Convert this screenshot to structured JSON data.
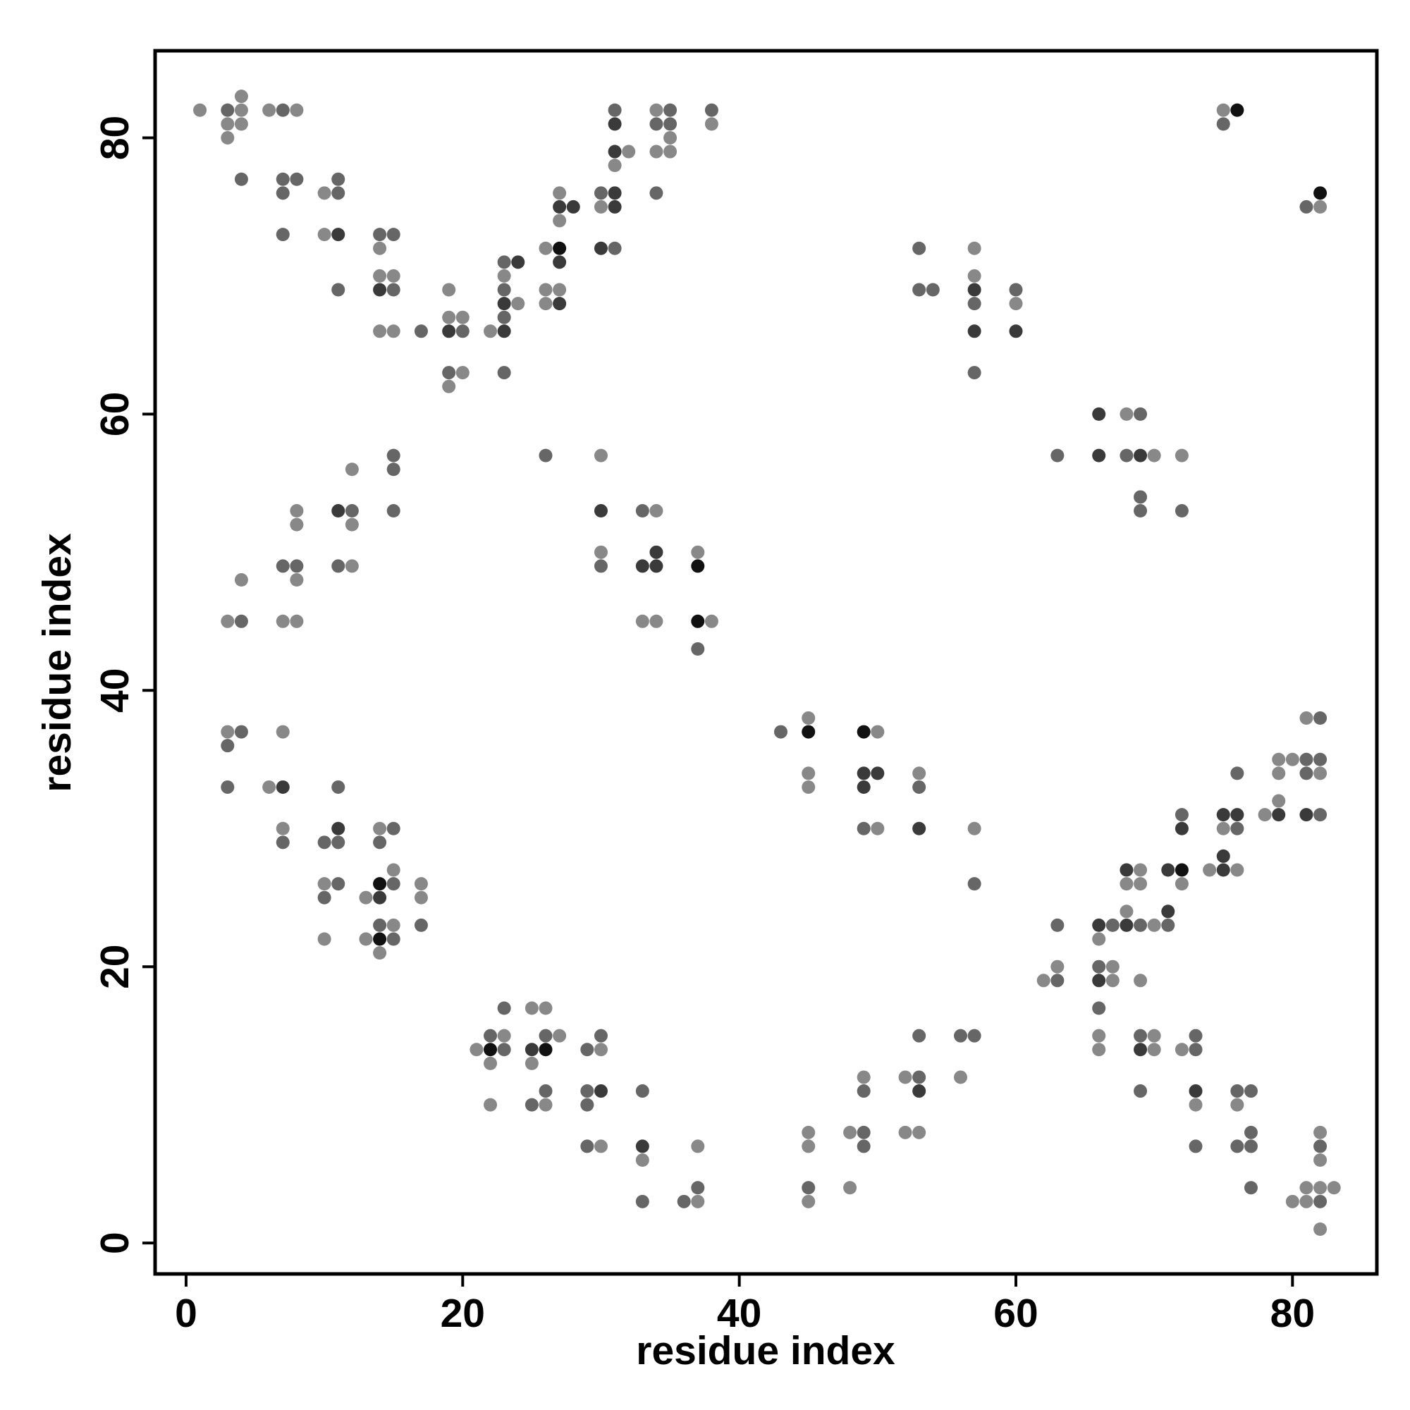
{
  "chart_data": {
    "type": "scatter",
    "x_label": "residue index",
    "y_label": "residue index",
    "xlim": [
      -2.24,
      86.1
    ],
    "ylim": [
      -2.24,
      86.3
    ],
    "xticks": [
      0,
      20,
      40,
      60,
      80
    ],
    "yticks": [
      0,
      20,
      40,
      60,
      80
    ],
    "series": [
      {
        "color": "#888888",
        "x": [
          1,
          4,
          4,
          3,
          4,
          3,
          6,
          8,
          10,
          10,
          14,
          14,
          15,
          14,
          15,
          19,
          19,
          20,
          20,
          19,
          22,
          23,
          24,
          26,
          26,
          27,
          26,
          27,
          27,
          30,
          32,
          31,
          34,
          35,
          34,
          35,
          38,
          3,
          4,
          3,
          8,
          7,
          8,
          8,
          8,
          7,
          6,
          12,
          12,
          12,
          7,
          14,
          10,
          15,
          13,
          17,
          17,
          15,
          13,
          14,
          10,
          30,
          30,
          34,
          37,
          33,
          34,
          38,
          75,
          57,
          57,
          60,
          82,
          82,
          83,
          81,
          81,
          80,
          82,
          82,
          76,
          73,
          72,
          70,
          70,
          66,
          66,
          69,
          67,
          67,
          63,
          62,
          66,
          70,
          68,
          72,
          69,
          69,
          68,
          76,
          74,
          75,
          79,
          78,
          82,
          80,
          79,
          79,
          81,
          45,
          48,
          37,
          48,
          45,
          45,
          53,
          52,
          37,
          33,
          52,
          56,
          49,
          30,
          30,
          26,
          27,
          25,
          26,
          25,
          23,
          22,
          21,
          22,
          57,
          50,
          53,
          50,
          45,
          45,
          45,
          82,
          72,
          70,
          68
        ],
        "y": [
          82,
          82,
          83,
          81,
          81,
          80,
          82,
          82,
          76,
          73,
          72,
          70,
          70,
          66,
          66,
          69,
          67,
          67,
          63,
          62,
          66,
          70,
          68,
          72,
          69,
          69,
          68,
          76,
          74,
          75,
          79,
          78,
          82,
          80,
          79,
          79,
          81,
          45,
          48,
          37,
          48,
          45,
          45,
          53,
          52,
          37,
          33,
          52,
          56,
          49,
          30,
          30,
          26,
          27,
          25,
          26,
          25,
          23,
          22,
          21,
          22,
          57,
          50,
          53,
          50,
          45,
          45,
          45,
          82,
          72,
          70,
          68,
          1,
          4,
          4,
          3,
          4,
          3,
          6,
          8,
          10,
          10,
          14,
          14,
          15,
          14,
          15,
          19,
          19,
          20,
          20,
          19,
          22,
          23,
          24,
          26,
          26,
          27,
          26,
          27,
          27,
          30,
          32,
          31,
          34,
          35,
          34,
          35,
          38,
          3,
          4,
          3,
          8,
          7,
          8,
          8,
          8,
          7,
          6,
          12,
          12,
          12,
          7,
          14,
          10,
          15,
          13,
          17,
          17,
          15,
          13,
          14,
          10,
          30,
          30,
          34,
          37,
          33,
          34,
          38,
          75,
          57,
          57,
          60
        ]
      },
      {
        "color": "#666666",
        "x": [
          3,
          4,
          7,
          7,
          8,
          7,
          7,
          11,
          11,
          11,
          14,
          15,
          15,
          17,
          20,
          19,
          23,
          23,
          23,
          23,
          30,
          31,
          31,
          35,
          34,
          35,
          34,
          38,
          4,
          4,
          3,
          3,
          7,
          8,
          12,
          11,
          15,
          15,
          15,
          11,
          7,
          10,
          11,
          15,
          14,
          11,
          10,
          15,
          17,
          14,
          15,
          26,
          30,
          33,
          37,
          75,
          53,
          53,
          54,
          57,
          57,
          60,
          82,
          77,
          82,
          77,
          77,
          76,
          73,
          77,
          76,
          69,
          73,
          73,
          69,
          66,
          66,
          63,
          67,
          69,
          71,
          63,
          76,
          72,
          82,
          82,
          81,
          81,
          76,
          82,
          45,
          37,
          36,
          33,
          49,
          49,
          53,
          49,
          57,
          56,
          53,
          33,
          29,
          29,
          29,
          30,
          29,
          26,
          25,
          26,
          23,
          23,
          22,
          57,
          49,
          53,
          43,
          81,
          72,
          69,
          69,
          68,
          63,
          69
        ],
        "y": [
          82,
          77,
          82,
          77,
          77,
          76,
          73,
          77,
          76,
          69,
          73,
          73,
          69,
          66,
          66,
          63,
          67,
          69,
          71,
          63,
          76,
          72,
          82,
          82,
          81,
          81,
          76,
          82,
          45,
          37,
          36,
          33,
          49,
          49,
          53,
          49,
          57,
          56,
          53,
          33,
          29,
          29,
          29,
          30,
          29,
          26,
          25,
          26,
          23,
          23,
          22,
          57,
          49,
          53,
          43,
          81,
          72,
          69,
          69,
          68,
          63,
          69,
          3,
          4,
          7,
          7,
          8,
          7,
          7,
          11,
          11,
          11,
          14,
          15,
          15,
          17,
          20,
          19,
          23,
          23,
          23,
          23,
          30,
          31,
          31,
          35,
          34,
          35,
          34,
          38,
          4,
          4,
          3,
          3,
          7,
          8,
          12,
          11,
          15,
          15,
          15,
          11,
          7,
          10,
          11,
          15,
          14,
          11,
          10,
          15,
          17,
          14,
          15,
          26,
          30,
          33,
          37,
          75,
          53,
          53,
          54,
          57,
          57,
          60
        ]
      },
      {
        "color": "#3a3a3a",
        "x": [
          11,
          14,
          19,
          23,
          23,
          24,
          27,
          27,
          27,
          28,
          31,
          31,
          30,
          31,
          31,
          11,
          7,
          11,
          14,
          30,
          33,
          34,
          34,
          57,
          57,
          60,
          73,
          69,
          66,
          66,
          68,
          71,
          71,
          68,
          75,
          75,
          76,
          75,
          72,
          81,
          79,
          53,
          33,
          30,
          25,
          53,
          49,
          49,
          50,
          69,
          66,
          66
        ],
        "y": [
          73,
          69,
          66,
          66,
          68,
          71,
          71,
          68,
          75,
          75,
          76,
          75,
          72,
          81,
          79,
          53,
          33,
          30,
          25,
          53,
          49,
          49,
          50,
          69,
          66,
          66,
          11,
          14,
          19,
          23,
          23,
          24,
          27,
          27,
          27,
          28,
          31,
          31,
          30,
          31,
          31,
          11,
          7,
          11,
          14,
          30,
          33,
          34,
          34,
          57,
          57,
          60
        ]
      },
      {
        "color": "#111111",
        "x": [
          27,
          14,
          14,
          37,
          37,
          76,
          72,
          26,
          22,
          49,
          45,
          82
        ],
        "y": [
          72,
          26,
          22,
          49,
          45,
          82,
          27,
          14,
          14,
          37,
          37,
          76
        ]
      }
    ]
  }
}
